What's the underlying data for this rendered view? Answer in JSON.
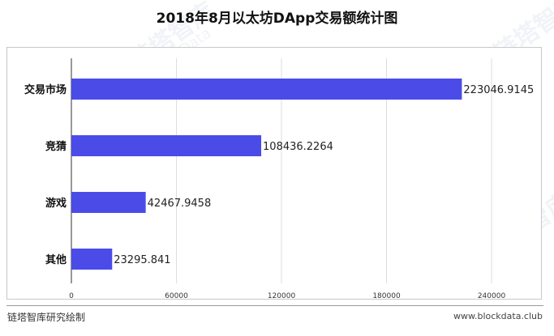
{
  "watermark": {
    "brand": "链塔智库",
    "brand_en": "BlockData"
  },
  "footer": {
    "source": "链塔智库研究绘制",
    "url": "www.blockdata.club"
  },
  "colors": {
    "bar": "#4b4ce8",
    "grid": "#dddddd",
    "axis": "#333333"
  },
  "chart_data": {
    "type": "bar",
    "orientation": "horizontal",
    "title": "2018年8月以太坊DApp交易额统计图",
    "categories": [
      "交易市场",
      "竞猜",
      "游戏",
      "其他"
    ],
    "values": [
      223046.9145,
      108436.2264,
      42467.9458,
      23295.841
    ],
    "value_labels": [
      "223046.9145",
      "108436.2264",
      "42467.9458",
      "23295.841"
    ],
    "xlim": [
      0,
      240000
    ],
    "xticks": [
      "0",
      "60000",
      "120000",
      "180000",
      "240000"
    ],
    "xtick_values": [
      0,
      60000,
      120000,
      180000,
      240000
    ],
    "grid": true,
    "legend": "none"
  }
}
